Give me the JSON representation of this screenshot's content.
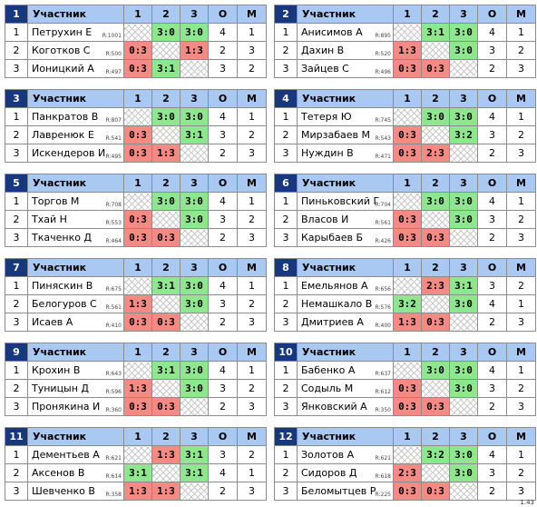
{
  "headers": {
    "participant": "Участник",
    "c1": "1",
    "c2": "2",
    "c3": "3",
    "o": "O",
    "m": "M"
  },
  "version": "1.43",
  "groups": [
    {
      "num": "1",
      "rows": [
        {
          "pos": "1",
          "name": "Петрухин Е",
          "rating": "R:1001",
          "s": [
            "",
            "3:0",
            "3:0"
          ],
          "o": "4",
          "m": "1"
        },
        {
          "pos": "2",
          "name": "Коготков С",
          "rating": "R:500",
          "s": [
            "0:3",
            "",
            "1:3"
          ],
          "o": "2",
          "m": "3"
        },
        {
          "pos": "3",
          "name": "Ионицкий А",
          "rating": "R:497",
          "s": [
            "0:3",
            "3:1",
            ""
          ],
          "o": "3",
          "m": "2"
        }
      ]
    },
    {
      "num": "2",
      "rows": [
        {
          "pos": "1",
          "name": "Анисимов А",
          "rating": "R:895",
          "s": [
            "",
            "3:1",
            "3:0"
          ],
          "o": "4",
          "m": "1"
        },
        {
          "pos": "2",
          "name": "Дахин В",
          "rating": "R:520",
          "s": [
            "1:3",
            "",
            "3:0"
          ],
          "o": "3",
          "m": "2"
        },
        {
          "pos": "3",
          "name": "Зайцев С",
          "rating": "R:496",
          "s": [
            "0:3",
            "0:3",
            ""
          ],
          "o": "2",
          "m": "3"
        }
      ]
    },
    {
      "num": "3",
      "rows": [
        {
          "pos": "1",
          "name": "Панкратов В",
          "rating": "R:807",
          "s": [
            "",
            "3:0",
            "3:0"
          ],
          "o": "4",
          "m": "1"
        },
        {
          "pos": "2",
          "name": "Лавренюк Е",
          "rating": "R:541",
          "s": [
            "0:3",
            "",
            "3:1"
          ],
          "o": "3",
          "m": "2"
        },
        {
          "pos": "3",
          "name": "Искендеров И",
          "rating": "R:495",
          "s": [
            "0:3",
            "1:3",
            ""
          ],
          "o": "2",
          "m": "3"
        }
      ]
    },
    {
      "num": "4",
      "rows": [
        {
          "pos": "1",
          "name": "Тетеря Ю",
          "rating": "R:745",
          "s": [
            "",
            "3:0",
            "3:0"
          ],
          "o": "4",
          "m": "1"
        },
        {
          "pos": "2",
          "name": "Мирзабаев М",
          "rating": "R:543",
          "s": [
            "0:3",
            "",
            "3:2"
          ],
          "o": "3",
          "m": "2"
        },
        {
          "pos": "3",
          "name": "Нуждин В",
          "rating": "R:471",
          "s": [
            "0:3",
            "2:3",
            ""
          ],
          "o": "2",
          "m": "3"
        }
      ]
    },
    {
      "num": "5",
      "rows": [
        {
          "pos": "1",
          "name": "Торгов М",
          "rating": "R:708",
          "s": [
            "",
            "3:0",
            "3:0"
          ],
          "o": "4",
          "m": "1"
        },
        {
          "pos": "2",
          "name": "Тхай Н",
          "rating": "R:553",
          "s": [
            "0:3",
            "",
            "3:0"
          ],
          "o": "3",
          "m": "2"
        },
        {
          "pos": "3",
          "name": "Ткаченко Д",
          "rating": "R:464",
          "s": [
            "0:3",
            "0:3",
            ""
          ],
          "o": "2",
          "m": "3"
        }
      ]
    },
    {
      "num": "6",
      "rows": [
        {
          "pos": "1",
          "name": "Пиньковский Г",
          "rating": "R:704",
          "s": [
            "",
            "3:0",
            "3:0"
          ],
          "o": "4",
          "m": "1"
        },
        {
          "pos": "2",
          "name": "Власов И",
          "rating": "R:561",
          "s": [
            "0:3",
            "",
            "3:0"
          ],
          "o": "3",
          "m": "2"
        },
        {
          "pos": "3",
          "name": "Карыбаев Б",
          "rating": "R:426",
          "s": [
            "0:3",
            "0:3",
            ""
          ],
          "o": "2",
          "m": "3"
        }
      ]
    },
    {
      "num": "7",
      "rows": [
        {
          "pos": "1",
          "name": "Пиняскин В",
          "rating": "R:675",
          "s": [
            "",
            "3:1",
            "3:0"
          ],
          "o": "4",
          "m": "1"
        },
        {
          "pos": "2",
          "name": "Белогуров С",
          "rating": "R:561",
          "s": [
            "1:3",
            "",
            "3:0"
          ],
          "o": "3",
          "m": "2"
        },
        {
          "pos": "3",
          "name": "Исаев А",
          "rating": "R:410",
          "s": [
            "0:3",
            "0:3",
            ""
          ],
          "o": "2",
          "m": "3"
        }
      ]
    },
    {
      "num": "8",
      "rows": [
        {
          "pos": "1",
          "name": "Емельянов А",
          "rating": "R:656",
          "s": [
            "",
            "2:3",
            "3:1"
          ],
          "o": "3",
          "m": "2"
        },
        {
          "pos": "2",
          "name": "Немашкало В",
          "rating": "R:576",
          "s": [
            "3:2",
            "",
            "3:0"
          ],
          "o": "4",
          "m": "1"
        },
        {
          "pos": "3",
          "name": "Дмитриев А",
          "rating": "R:400",
          "s": [
            "1:3",
            "0:3",
            ""
          ],
          "o": "2",
          "m": "3"
        }
      ]
    },
    {
      "num": "9",
      "rows": [
        {
          "pos": "1",
          "name": "Крохин В",
          "rating": "R:643",
          "s": [
            "",
            "3:1",
            "3:0"
          ],
          "o": "4",
          "m": "1"
        },
        {
          "pos": "2",
          "name": "Туницын Д",
          "rating": "R:596",
          "s": [
            "1:3",
            "",
            "3:0"
          ],
          "o": "3",
          "m": "2"
        },
        {
          "pos": "3",
          "name": "Пронякина И",
          "rating": "R:360",
          "s": [
            "0:3",
            "0:3",
            ""
          ],
          "o": "2",
          "m": "3"
        }
      ]
    },
    {
      "num": "10",
      "rows": [
        {
          "pos": "1",
          "name": "Бабенко А",
          "rating": "R:637",
          "s": [
            "",
            "3:0",
            "3:0"
          ],
          "o": "4",
          "m": "1"
        },
        {
          "pos": "2",
          "name": "Содыль М",
          "rating": "R:612",
          "s": [
            "0:3",
            "",
            "3:0"
          ],
          "o": "3",
          "m": "2"
        },
        {
          "pos": "3",
          "name": "Янковский А",
          "rating": "R:350",
          "s": [
            "0:3",
            "0:3",
            ""
          ],
          "o": "2",
          "m": "3"
        }
      ]
    },
    {
      "num": "11",
      "rows": [
        {
          "pos": "1",
          "name": "Дементьев А",
          "rating": "R:621",
          "s": [
            "",
            "1:3",
            "3:1"
          ],
          "o": "3",
          "m": "2"
        },
        {
          "pos": "2",
          "name": "Аксенов В",
          "rating": "R:614",
          "s": [
            "3:1",
            "",
            "3:1"
          ],
          "o": "4",
          "m": "1"
        },
        {
          "pos": "3",
          "name": "Шевченко В",
          "rating": "R:358",
          "s": [
            "1:3",
            "1:3",
            ""
          ],
          "o": "2",
          "m": "3"
        }
      ]
    },
    {
      "num": "12",
      "rows": [
        {
          "pos": "1",
          "name": "Золотов А",
          "rating": "R:621",
          "s": [
            "",
            "3:2",
            "3:0"
          ],
          "o": "4",
          "m": "1"
        },
        {
          "pos": "2",
          "name": "Сидоров Д",
          "rating": "R:618",
          "s": [
            "2:3",
            "",
            "3:0"
          ],
          "o": "3",
          "m": "2"
        },
        {
          "pos": "3",
          "name": "Беломытцев Р",
          "rating": "R:225",
          "s": [
            "0:3",
            "0:3",
            ""
          ],
          "o": "2",
          "m": "3"
        }
      ]
    }
  ]
}
